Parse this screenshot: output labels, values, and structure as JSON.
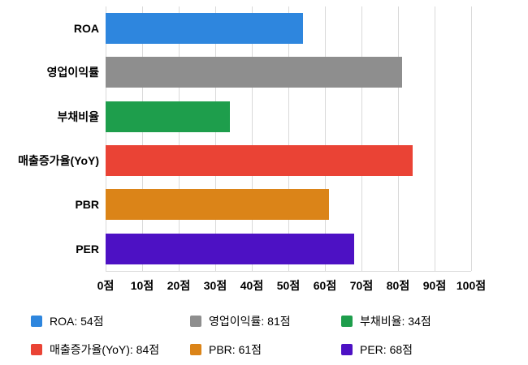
{
  "chart_data": {
    "type": "bar",
    "orientation": "horizontal",
    "title": "",
    "xlabel": "",
    "ylabel": "",
    "xlim": [
      0,
      100
    ],
    "grid": true,
    "legend_position": "bottom",
    "categories": [
      "ROA",
      "영업이익률",
      "부채비율",
      "매출증가율(YoY)",
      "PBR",
      "PER"
    ],
    "values": [
      54,
      81,
      34,
      84,
      61,
      68
    ],
    "colors": [
      "#2E86DE",
      "#8E8E8E",
      "#1E9E4C",
      "#EA4335",
      "#DB8418",
      "#4D11C4"
    ],
    "x_ticks": [
      "0점",
      "10점",
      "20점",
      "30점",
      "40점",
      "50점",
      "60점",
      "70점",
      "80점",
      "90점",
      "100점"
    ],
    "legend": [
      {
        "label": "ROA: 54점",
        "color": "#2E86DE"
      },
      {
        "label": "영업이익률: 81점",
        "color": "#8E8E8E"
      },
      {
        "label": "부채비율: 34점",
        "color": "#1E9E4C"
      },
      {
        "label": "매출증가율(YoY): 84점",
        "color": "#EA4335"
      },
      {
        "label": "PBR: 61점",
        "color": "#DB8418"
      },
      {
        "label": "PER: 68점",
        "color": "#4D11C4"
      }
    ]
  }
}
